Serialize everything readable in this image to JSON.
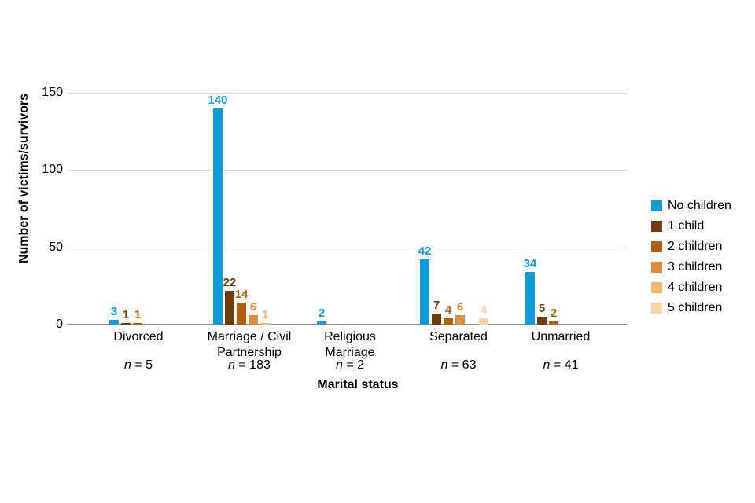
{
  "chart_data": {
    "type": "bar",
    "title": "",
    "xlabel": "Marital status",
    "ylabel": "Number of victims/survivors",
    "ylim": [
      0,
      150
    ],
    "yticks": [
      0,
      50,
      100,
      150
    ],
    "grid": true,
    "legend_position": "right",
    "categories": [
      {
        "label_lines": [
          "Divorced"
        ],
        "n_label": "n = 5"
      },
      {
        "label_lines": [
          "Marriage / Civil",
          "Partnership"
        ],
        "n_label": "n = 183"
      },
      {
        "label_lines": [
          "Religious",
          "Marriage"
        ],
        "n_label": "n = 2"
      },
      {
        "label_lines": [
          "Separated"
        ],
        "n_label": "n = 63"
      },
      {
        "label_lines": [
          "Unmarried"
        ],
        "n_label": "n = 41"
      }
    ],
    "series": [
      {
        "name": "No children",
        "color": "#0f9cda",
        "values": [
          3,
          140,
          2,
          42,
          34
        ]
      },
      {
        "name": "1 child",
        "color": "#6e3d0e",
        "values": [
          1,
          22,
          null,
          7,
          5
        ]
      },
      {
        "name": "2 children",
        "color": "#b25f0e",
        "values": [
          1,
          14,
          null,
          4,
          2
        ]
      },
      {
        "name": "3 children",
        "color": "#e18c3b",
        "values": [
          null,
          6,
          null,
          6,
          null
        ]
      },
      {
        "name": "4 children",
        "color": "#f3b371",
        "values": [
          null,
          1,
          null,
          null,
          null
        ]
      },
      {
        "name": "5 children",
        "color": "#f7d3a6",
        "values": [
          null,
          null,
          null,
          4,
          null
        ]
      }
    ],
    "colors": {
      "gridline": "#d9d9d9",
      "axisline": "#8a8a8a",
      "text": "#000000"
    }
  }
}
